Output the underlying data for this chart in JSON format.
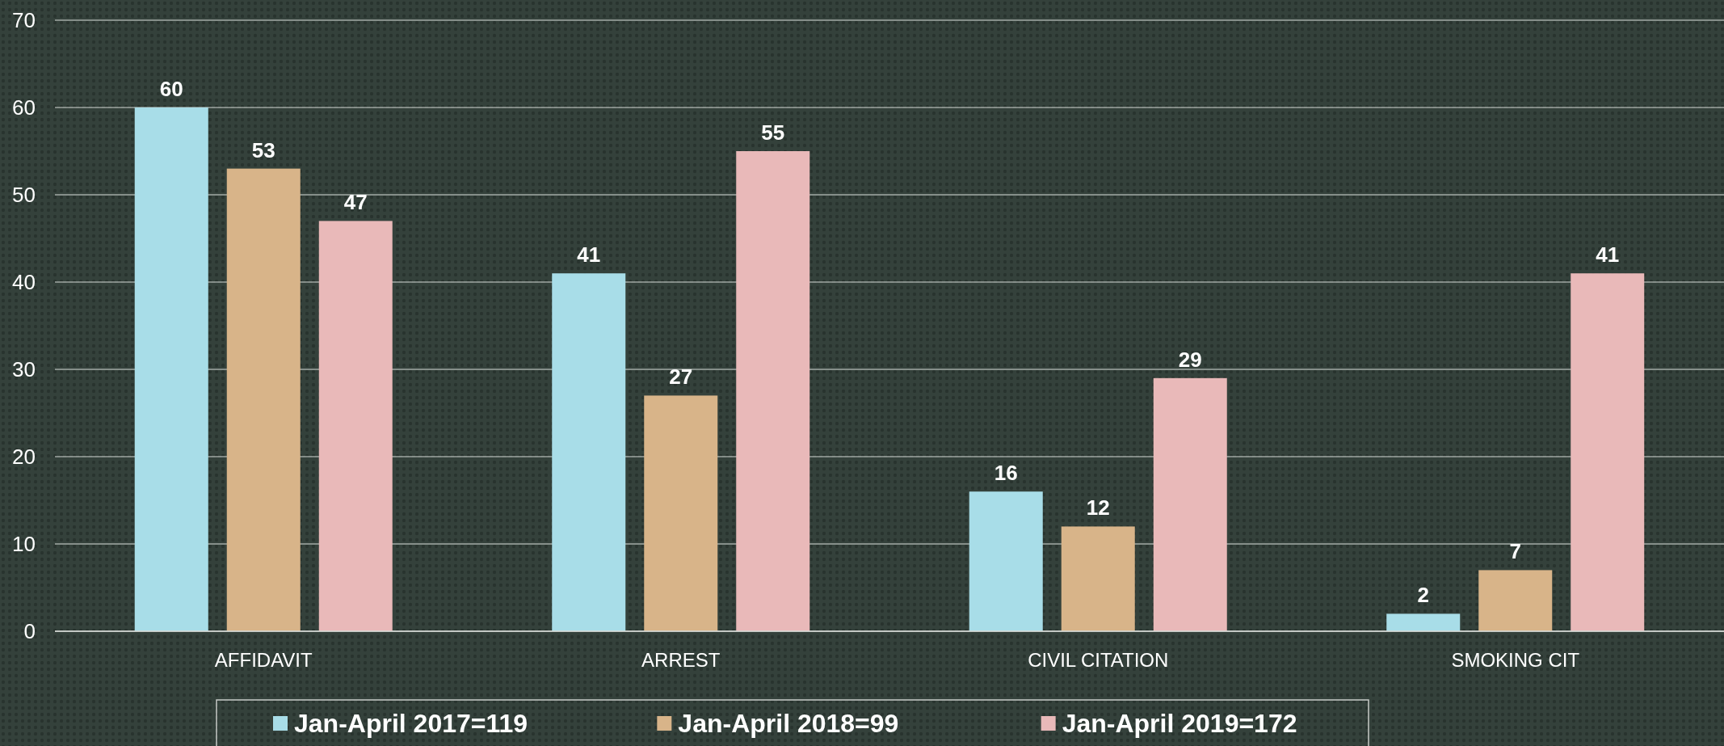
{
  "chart_data": {
    "type": "bar",
    "categories": [
      "AFFIDAVIT",
      "ARREST",
      "CIVIL CITATION",
      "SMOKING CIT"
    ],
    "series": [
      {
        "name": "Jan-April 2017=119",
        "color": "#a8dde8",
        "values": [
          60,
          41,
          16,
          2
        ]
      },
      {
        "name": "Jan-April 2018=99",
        "color": "#d8b489",
        "values": [
          53,
          27,
          12,
          7
        ]
      },
      {
        "name": "Jan-April 2019=172",
        "color": "#e9b9b9",
        "values": [
          47,
          55,
          29,
          41
        ]
      }
    ],
    "ylim": [
      0,
      70
    ],
    "yticks": [
      0,
      10,
      20,
      30,
      40,
      50,
      60,
      70
    ],
    "grid": "y",
    "legend": "bottom",
    "data_labels": true
  }
}
